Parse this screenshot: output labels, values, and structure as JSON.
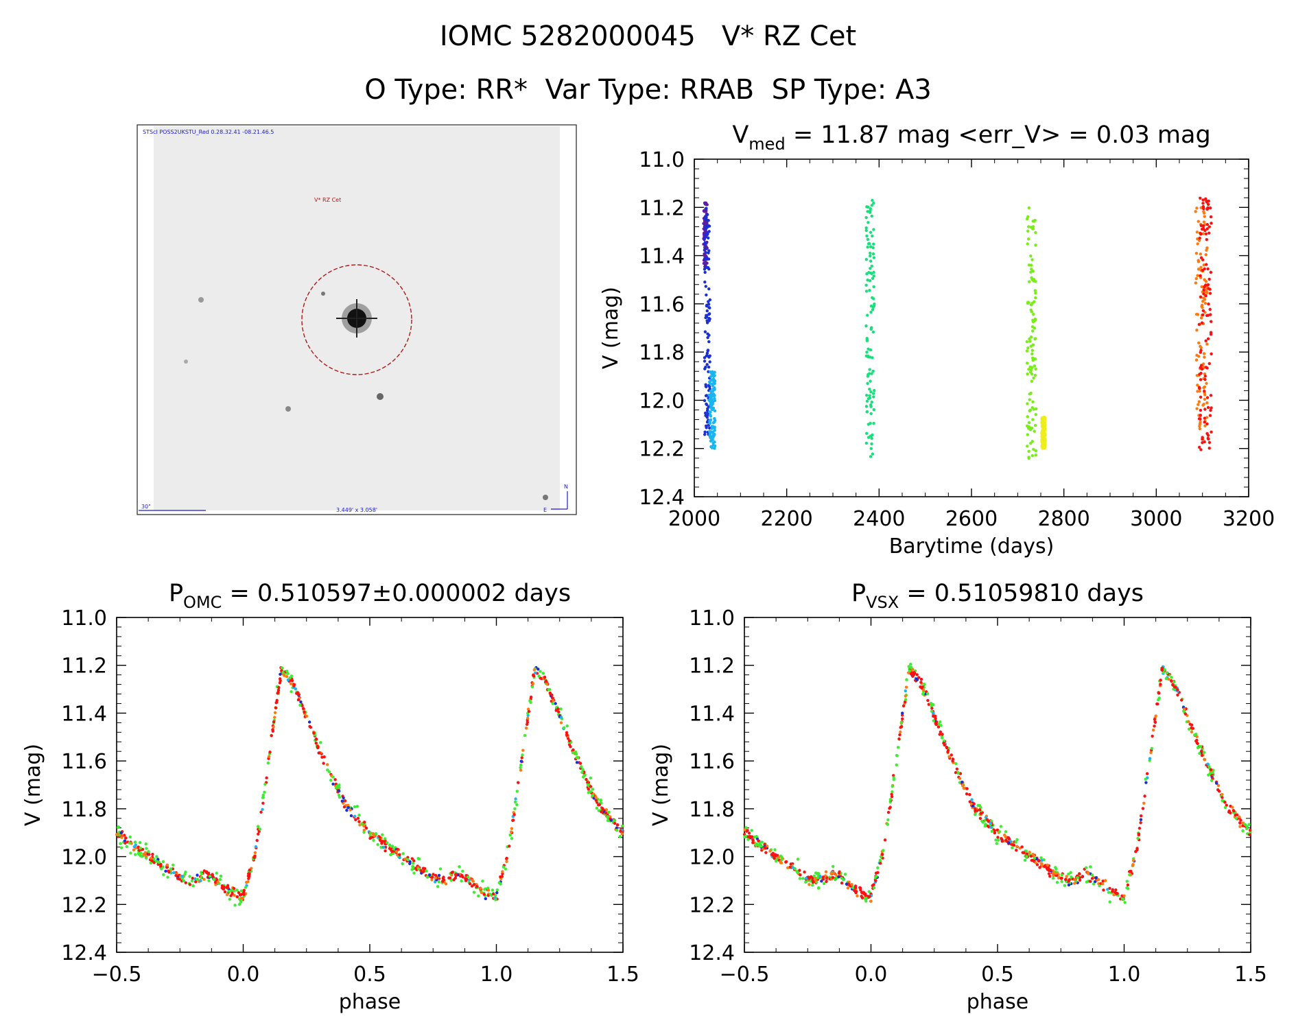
{
  "header": {
    "title_line1": "IOMC 5282000045   V* RZ Cet",
    "title_line2": "O Type: RR*  Var Type: RRAB  SP Type: A3"
  },
  "image_panel": {
    "header_text": "STScI POSS2UKSTU_Red 0.28.32.41 -08.21.46.5",
    "target_label": "V* RZ Cet",
    "scale_label": "30\"",
    "fov_label": "3.449' x 3.058'",
    "north_label": "N",
    "east_label": "E"
  },
  "chart_data": [
    {
      "id": "lightcurve",
      "type": "scatter",
      "title_main": "V",
      "title_sub": "med",
      "title_rest": " = 11.87 mag <err_V> = 0.03 mag",
      "xlabel": "Barytime (days)",
      "ylabel": "V (mag)",
      "xlim": [
        2000,
        3200
      ],
      "ylim": [
        12.4,
        11.0
      ],
      "xticks": [
        "2000",
        "2200",
        "2400",
        "2600",
        "2800",
        "3000",
        "3200"
      ],
      "yticks": [
        "11.0",
        "11.2",
        "11.4",
        "11.6",
        "11.8",
        "12.0",
        "12.2",
        "12.4"
      ],
      "series": [
        {
          "color": "#5a1fa0",
          "x": [
            2020,
            2028
          ],
          "y": [
            11.18,
            11.45
          ]
        },
        {
          "color": "#1a2fd6",
          "x": [
            2022,
            2034
          ],
          "y": [
            11.2,
            12.15
          ]
        },
        {
          "color": "#1ab4f0",
          "x": [
            2032,
            2045
          ],
          "y": [
            11.88,
            12.2
          ]
        },
        {
          "color": "#18e07a",
          "x": [
            2372,
            2390
          ],
          "y": [
            11.17,
            12.27
          ]
        },
        {
          "color": "#78ee18",
          "x": [
            2720,
            2740
          ],
          "y": [
            11.2,
            12.27
          ]
        },
        {
          "color": "#eeee18",
          "x": [
            2752,
            2760
          ],
          "y": [
            12.07,
            12.2
          ]
        },
        {
          "color": "#ff7a10",
          "x": [
            3085,
            3110
          ],
          "y": [
            11.2,
            12.2
          ]
        },
        {
          "color": "#ff1010",
          "x": [
            3092,
            3120
          ],
          "y": [
            11.16,
            12.21
          ]
        }
      ]
    },
    {
      "id": "phase_omc",
      "type": "scatter",
      "title_main": "P",
      "title_sub": "OMC",
      "title_rest": " = 0.510597±0.000002 days",
      "xlabel": "phase",
      "ylabel": "V (mag)",
      "xlim": [
        -0.5,
        1.5
      ],
      "ylim": [
        12.4,
        11.0
      ],
      "xticks": [
        "−0.5",
        "0.0",
        "0.5",
        "1.0",
        "1.5"
      ],
      "yticks": [
        "11.0",
        "11.2",
        "11.4",
        "11.6",
        "11.8",
        "12.0",
        "12.2",
        "12.4"
      ],
      "curve_phase": [
        0.0,
        0.05,
        0.1,
        0.15,
        0.2,
        0.3,
        0.4,
        0.5,
        0.6,
        0.7,
        0.75,
        0.8,
        0.85,
        0.9,
        0.95,
        1.0
      ],
      "curve_mag": [
        12.17,
        11.97,
        11.6,
        11.22,
        11.28,
        11.55,
        11.78,
        11.9,
        11.98,
        12.05,
        12.09,
        12.1,
        12.07,
        12.1,
        12.15,
        12.17
      ],
      "colors": [
        "#ff1010",
        "#ff7a10",
        "#3cee30",
        "#1a2fd6",
        "#1ab4f0"
      ]
    },
    {
      "id": "phase_vsx",
      "type": "scatter",
      "title_main": "P",
      "title_sub": "VSX",
      "title_rest": " = 0.51059810 days",
      "xlabel": "phase",
      "ylabel": "V (mag)",
      "xlim": [
        -0.5,
        1.5
      ],
      "ylim": [
        12.4,
        11.0
      ],
      "xticks": [
        "−0.5",
        "0.0",
        "0.5",
        "1.0",
        "1.5"
      ],
      "yticks": [
        "11.0",
        "11.2",
        "11.4",
        "11.6",
        "11.8",
        "12.0",
        "12.2",
        "12.4"
      ],
      "curve_phase": [
        0.0,
        0.05,
        0.1,
        0.15,
        0.2,
        0.3,
        0.4,
        0.5,
        0.6,
        0.7,
        0.75,
        0.8,
        0.85,
        0.9,
        0.95,
        1.0
      ],
      "curve_mag": [
        12.17,
        11.97,
        11.6,
        11.22,
        11.28,
        11.55,
        11.78,
        11.9,
        11.98,
        12.05,
        12.09,
        12.1,
        12.07,
        12.1,
        12.15,
        12.17
      ],
      "colors": [
        "#ff1010",
        "#ff7a10",
        "#3cee30",
        "#1a2fd6",
        "#1ab4f0"
      ]
    }
  ]
}
